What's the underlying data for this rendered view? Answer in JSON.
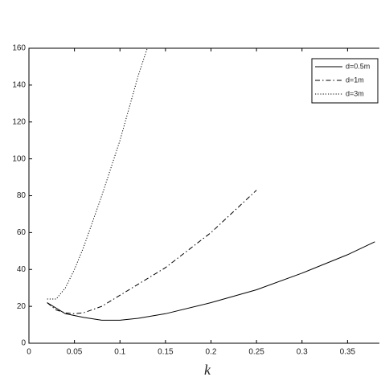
{
  "chart_data": {
    "type": "line",
    "xlabel": "k",
    "xlim": [
      0,
      0.385
    ],
    "ylim": [
      0,
      160
    ],
    "xticks": [
      0,
      0.05,
      0.1,
      0.15,
      0.2,
      0.25,
      0.3,
      0.35
    ],
    "yticks": [
      0,
      20,
      40,
      60,
      80,
      100,
      120,
      140,
      160
    ],
    "legend": "upper right",
    "series": [
      {
        "name": "d=0.5m",
        "color": "#000000",
        "linestyle": "solid",
        "x": [
          0.02,
          0.03,
          0.04,
          0.06,
          0.08,
          0.1,
          0.12,
          0.15,
          0.2,
          0.25,
          0.3,
          0.35,
          0.38
        ],
        "values": [
          22,
          19,
          16,
          14,
          12.5,
          12.5,
          13.5,
          16,
          22,
          29,
          38,
          48,
          55
        ]
      },
      {
        "name": "d=1m",
        "color": "#000000",
        "linestyle": "dashdot",
        "x": [
          0.02,
          0.03,
          0.04,
          0.05,
          0.06,
          0.08,
          0.1,
          0.15,
          0.2,
          0.25
        ],
        "values": [
          22,
          18,
          16.5,
          16,
          16.5,
          20,
          26,
          41,
          60,
          83
        ]
      },
      {
        "name": "d=3m",
        "color": "#000000",
        "linestyle": "dotted",
        "x": [
          0.02,
          0.03,
          0.04,
          0.05,
          0.06,
          0.08,
          0.1,
          0.12,
          0.13
        ],
        "values": [
          24,
          24,
          30,
          40,
          52,
          80,
          110,
          145,
          160
        ]
      }
    ]
  }
}
